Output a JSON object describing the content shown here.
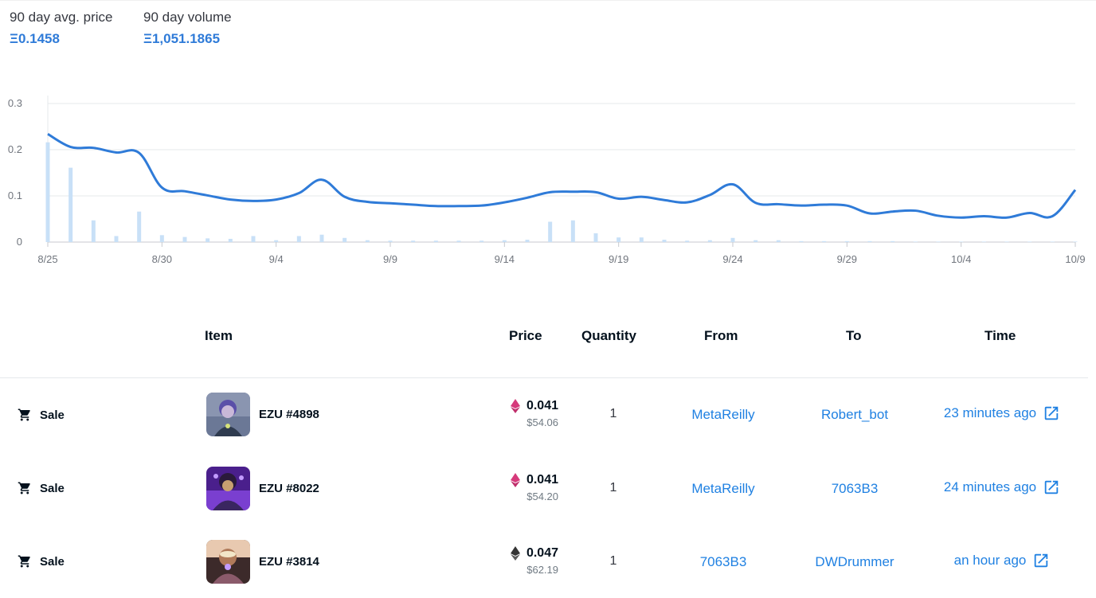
{
  "stats": {
    "avg_price_label": "90 day avg. price",
    "avg_price_value": "Ξ0.1458",
    "volume_label": "90 day volume",
    "volume_value": "Ξ1,051.1865"
  },
  "colors": {
    "accent": "#2081e2",
    "line": "#2f7bd8",
    "bar": "#c8e0f7",
    "grid": "#e5e8eb"
  },
  "chart_data": {
    "type": "line",
    "x": [
      "8/25",
      "8/26",
      "8/27",
      "8/28",
      "8/29",
      "8/30",
      "8/31",
      "9/1",
      "9/2",
      "9/3",
      "9/4",
      "9/5",
      "9/6",
      "9/7",
      "9/8",
      "9/9",
      "9/10",
      "9/11",
      "9/12",
      "9/13",
      "9/14",
      "9/15",
      "9/16",
      "9/17",
      "9/18",
      "9/19",
      "9/20",
      "9/21",
      "9/22",
      "9/23",
      "9/24",
      "9/25",
      "9/26",
      "9/27",
      "9/28",
      "9/29",
      "9/30",
      "10/1",
      "10/2",
      "10/3",
      "10/4",
      "10/5",
      "10/6",
      "10/7",
      "10/8",
      "10/9"
    ],
    "tick_labels": [
      "8/25",
      "8/30",
      "9/4",
      "9/9",
      "9/14",
      "9/19",
      "9/24",
      "9/29",
      "10/4",
      "10/9"
    ],
    "y_ticks": [
      "0",
      "0.1",
      "0.2",
      "0.3"
    ],
    "ylim": [
      0,
      0.3
    ],
    "series": [
      {
        "type": "line",
        "values": [
          0.234,
          0.206,
          0.204,
          0.194,
          0.193,
          0.118,
          0.11,
          0.101,
          0.092,
          0.089,
          0.092,
          0.106,
          0.135,
          0.098,
          0.087,
          0.084,
          0.081,
          0.078,
          0.078,
          0.079,
          0.086,
          0.096,
          0.108,
          0.109,
          0.108,
          0.094,
          0.098,
          0.091,
          0.086,
          0.102,
          0.125,
          0.085,
          0.082,
          0.079,
          0.081,
          0.079,
          0.062,
          0.066,
          0.068,
          0.057,
          0.053,
          0.056,
          0.053,
          0.063,
          0.056,
          0.113
        ]
      },
      {
        "type": "bar",
        "values": [
          0.216,
          0.161,
          0.047,
          0.013,
          0.066,
          0.015,
          0.011,
          0.008,
          0.007,
          0.013,
          0.004,
          0.013,
          0.016,
          0.009,
          0.004,
          0.003,
          0.003,
          0.003,
          0.003,
          0.003,
          0.004,
          0.005,
          0.044,
          0.047,
          0.019,
          0.01,
          0.01,
          0.005,
          0.003,
          0.004,
          0.009,
          0.004,
          0.004,
          0.002,
          0.002,
          0.002,
          0.002,
          0.002,
          0.001,
          0.001,
          0.001,
          0.001,
          0.001,
          0.001,
          0.001,
          0.001
        ]
      }
    ]
  },
  "table": {
    "headers": {
      "item": "Item",
      "price": "Price",
      "quantity": "Quantity",
      "from": "From",
      "to": "To",
      "time": "Time"
    },
    "rows": [
      {
        "event": "Sale",
        "item": "EZU #4898",
        "price": "0.041",
        "usd": "$54.06",
        "qty": "1",
        "from": "MetaReilly",
        "to": "Robert_bot",
        "time": "23 minutes ago",
        "currency_icon": "weth-icon"
      },
      {
        "event": "Sale",
        "item": "EZU #8022",
        "price": "0.041",
        "usd": "$54.20",
        "qty": "1",
        "from": "MetaReilly",
        "to": "7063B3",
        "time": "24 minutes ago",
        "currency_icon": "weth-icon"
      },
      {
        "event": "Sale",
        "item": "EZU #3814",
        "price": "0.047",
        "usd": "$62.19",
        "qty": "1",
        "from": "7063B3",
        "to": "DWDrummer",
        "time": "an hour ago",
        "currency_icon": "eth-icon"
      }
    ]
  }
}
